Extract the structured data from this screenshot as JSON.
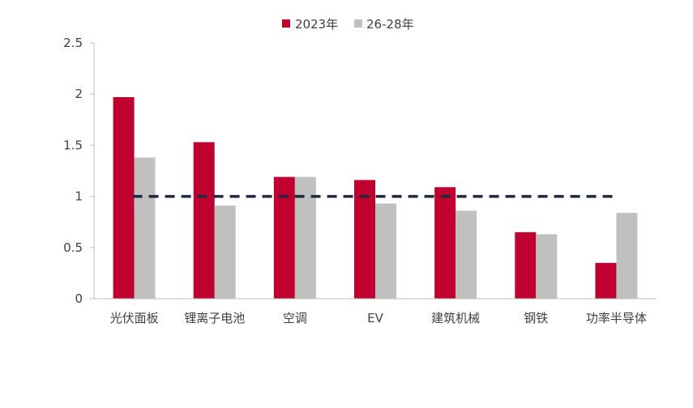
{
  "chart_data": {
    "type": "bar",
    "categories": [
      "光伏面板",
      "锂离子电池",
      "空调",
      "EV",
      "建筑机械",
      "钢铁",
      "功率半导体"
    ],
    "series": [
      {
        "name": "2023年",
        "color": "#C0002F",
        "values": [
          1.97,
          1.53,
          1.19,
          1.16,
          1.09,
          0.65,
          0.35
        ]
      },
      {
        "name": "26-28年",
        "color": "#C0C0C0",
        "values": [
          1.38,
          0.91,
          1.19,
          0.93,
          0.86,
          0.63,
          0.84
        ]
      }
    ],
    "reference_line": {
      "value": 1,
      "color": "#1F2A3C",
      "style": "dashed"
    },
    "yticks": [
      "0",
      "0.5",
      "1",
      "1.5",
      "2",
      "2.5"
    ],
    "ylim": [
      0,
      2.5
    ],
    "legend_position": "top",
    "grid": false
  }
}
